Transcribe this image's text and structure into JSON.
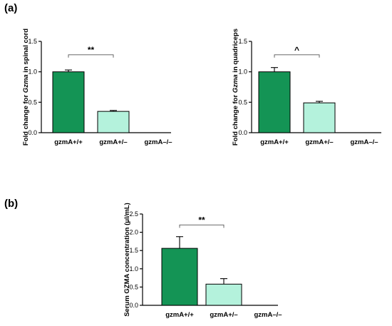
{
  "panels": {
    "a": "(a)",
    "b": "(b)"
  },
  "colors": {
    "wildtype": "#149455",
    "heterozygous": "#b4f2dc"
  },
  "chart_data": [
    {
      "type": "bar",
      "panel": "(a)",
      "categories": [
        "gzmA+/+",
        "gzmA+/–",
        "gzmA–/–"
      ],
      "values": [
        1.0,
        0.35,
        null
      ],
      "errors": [
        0.03,
        0.015,
        null
      ],
      "ylabel_pre": "Fold change for ",
      "ylabel_italic": "Gzma",
      "ylabel_post": " in spinal cord",
      "ylim": [
        0,
        1.5
      ],
      "yticks": [
        "0.0",
        "0.5",
        "1.0",
        "1.5"
      ],
      "significance": {
        "between": [
          0,
          1
        ],
        "label": "**",
        "y": 1.28
      }
    },
    {
      "type": "bar",
      "panel": "(a)",
      "categories": [
        "gzmA+/+",
        "gzmA+/–",
        "gzmA–/–"
      ],
      "values": [
        1.0,
        0.49,
        null
      ],
      "errors": [
        0.07,
        0.025,
        null
      ],
      "ylabel_pre": "Fold change for ",
      "ylabel_italic": "Gzma",
      "ylabel_post": " in quadriceps",
      "ylim": [
        0,
        1.5
      ],
      "yticks": [
        "0.0",
        "0.5",
        "1.0",
        "1.5"
      ],
      "significance": {
        "between": [
          0,
          1
        ],
        "label": "^",
        "y": 1.28
      }
    },
    {
      "type": "bar",
      "panel": "(b)",
      "categories": [
        "gzmA+/+",
        "gzmA+/–",
        "gzmA–/–"
      ],
      "values": [
        1.56,
        0.58,
        null
      ],
      "errors": [
        0.32,
        0.15,
        null
      ],
      "ylabel_pre": "Serum GZMA concentration (",
      "ylabel_italic": "",
      "ylabel_post": "μl/mL)",
      "ylim": [
        0,
        2.5
      ],
      "yticks": [
        "0.0",
        "0.5",
        "1.0",
        "1.5",
        "2.0",
        "2.5"
      ],
      "significance": {
        "between": [
          0,
          1
        ],
        "label": "**",
        "y": 2.2
      }
    }
  ]
}
